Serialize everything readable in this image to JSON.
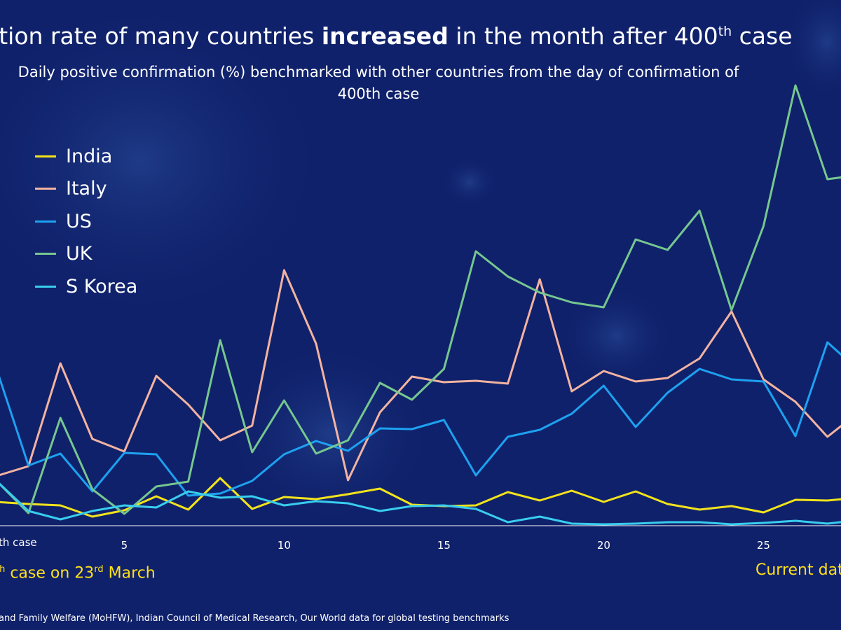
{
  "header": {
    "title_pre": "ation rate of many countries ",
    "title_bold": "increased",
    "title_mid": " in the month after 400",
    "title_sup": "th",
    "title_post": " case",
    "subtitle_line1": "Daily positive confirmation (%) benchmarked with other countries from the day of confirmation of",
    "subtitle_line2": "400th case"
  },
  "annotations": {
    "x_start_label": "th case",
    "left_sup": "th",
    "left_text": " case on 23",
    "left_sup2": "rd",
    "left_text2": " March",
    "right_text": "Current dat"
  },
  "source": "and Family Welfare (MoHFW), Indian Council of Medical Research, Our World data for global testing benchmarks",
  "colors": {
    "background": "#10216b",
    "India": "#f2e31b",
    "Italy": "#f2b3a0",
    "US": "#1da1f0",
    "UK": "#76c78f",
    "S Korea": "#38cdee",
    "axis": "#ffffff",
    "annotation": "#ffe11a"
  },
  "chart_data": {
    "type": "line",
    "x_ticks": [
      5,
      10,
      15,
      20,
      25
    ],
    "x_range": [
      1,
      27.5
    ],
    "legend_position": "left, upper",
    "grid": false,
    "series": [
      {
        "name": "India",
        "x": [
          1,
          2,
          3,
          4,
          5,
          6,
          7,
          8,
          9,
          10,
          11,
          12,
          13,
          14,
          15,
          16,
          17,
          18,
          19,
          20,
          21,
          22,
          23,
          24,
          25,
          26,
          27,
          28
        ],
        "y": [
          3.3,
          3.0,
          2.8,
          1.2,
          2.1,
          4.1,
          2.2,
          6.7,
          2.3,
          4.0,
          3.7,
          4.4,
          5.2,
          2.9,
          2.7,
          2.8,
          4.7,
          3.5,
          4.9,
          3.3,
          4.8,
          3.0,
          2.2,
          2.7,
          1.8,
          3.6,
          3.5,
          3.9
        ]
      },
      {
        "name": "Italy",
        "x": [
          1,
          2,
          3,
          4,
          5,
          6,
          7,
          8,
          9,
          10,
          11,
          12,
          13,
          14,
          15,
          16,
          17,
          18,
          19,
          20,
          21,
          22,
          23,
          24,
          25,
          26,
          27,
          28
        ],
        "y": [
          7.0,
          8.4,
          23.1,
          12.3,
          10.5,
          21.3,
          17.2,
          12.1,
          14.2,
          36.4,
          25.9,
          6.4,
          16.1,
          21.2,
          20.4,
          20.6,
          20.2,
          35.1,
          19.1,
          22.0,
          20.5,
          21.0,
          23.8,
          30.5,
          20.8,
          17.6,
          12.6,
          16.2
        ]
      },
      {
        "name": "US",
        "x": [
          1,
          2,
          3,
          4,
          5,
          6,
          7,
          8,
          9,
          10,
          11,
          12,
          13,
          14,
          15,
          16,
          17,
          18,
          19,
          20,
          21,
          22,
          23,
          24,
          25,
          26,
          27,
          28
        ],
        "y": [
          22.3,
          8.5,
          10.2,
          4.8,
          10.3,
          10.1,
          4.2,
          4.5,
          6.3,
          10.1,
          12.0,
          10.6,
          13.8,
          13.7,
          15.0,
          7.1,
          12.6,
          13.6,
          15.9,
          19.9,
          14.0,
          18.9,
          22.3,
          20.8,
          20.5,
          12.7,
          26.1,
          22.0
        ]
      },
      {
        "name": "UK",
        "x": [
          1,
          2,
          3,
          4,
          5,
          6,
          7,
          8,
          9,
          10,
          11,
          12,
          13,
          14,
          15,
          16,
          17,
          18,
          19,
          20,
          21,
          22,
          23,
          24,
          25,
          26,
          27,
          28
        ],
        "y": [
          6.3,
          1.7,
          15.3,
          5.1,
          1.6,
          5.5,
          6.2,
          26.4,
          10.4,
          17.8,
          10.2,
          12.1,
          20.3,
          17.9,
          22.3,
          39.1,
          35.5,
          33.2,
          31.8,
          31.1,
          40.8,
          39.3,
          44.9,
          30.7,
          42.7,
          62.8,
          49.4,
          50.0
        ]
      },
      {
        "name": "S Korea",
        "x": [
          1,
          2,
          3,
          4,
          5,
          6,
          7,
          8,
          9,
          10,
          11,
          12,
          13,
          14,
          15,
          16,
          17,
          18,
          19,
          20,
          21,
          22,
          23,
          24,
          25,
          26,
          27,
          28
        ],
        "y": [
          6.3,
          2.0,
          0.8,
          2.0,
          2.8,
          2.5,
          4.8,
          3.9,
          4.1,
          2.8,
          3.4,
          3.1,
          2.0,
          2.7,
          2.8,
          2.3,
          0.4,
          1.2,
          0.2,
          0.1,
          0.2,
          0.4,
          0.4,
          0.1,
          0.3,
          0.6,
          0.2,
          0.7
        ]
      }
    ]
  }
}
